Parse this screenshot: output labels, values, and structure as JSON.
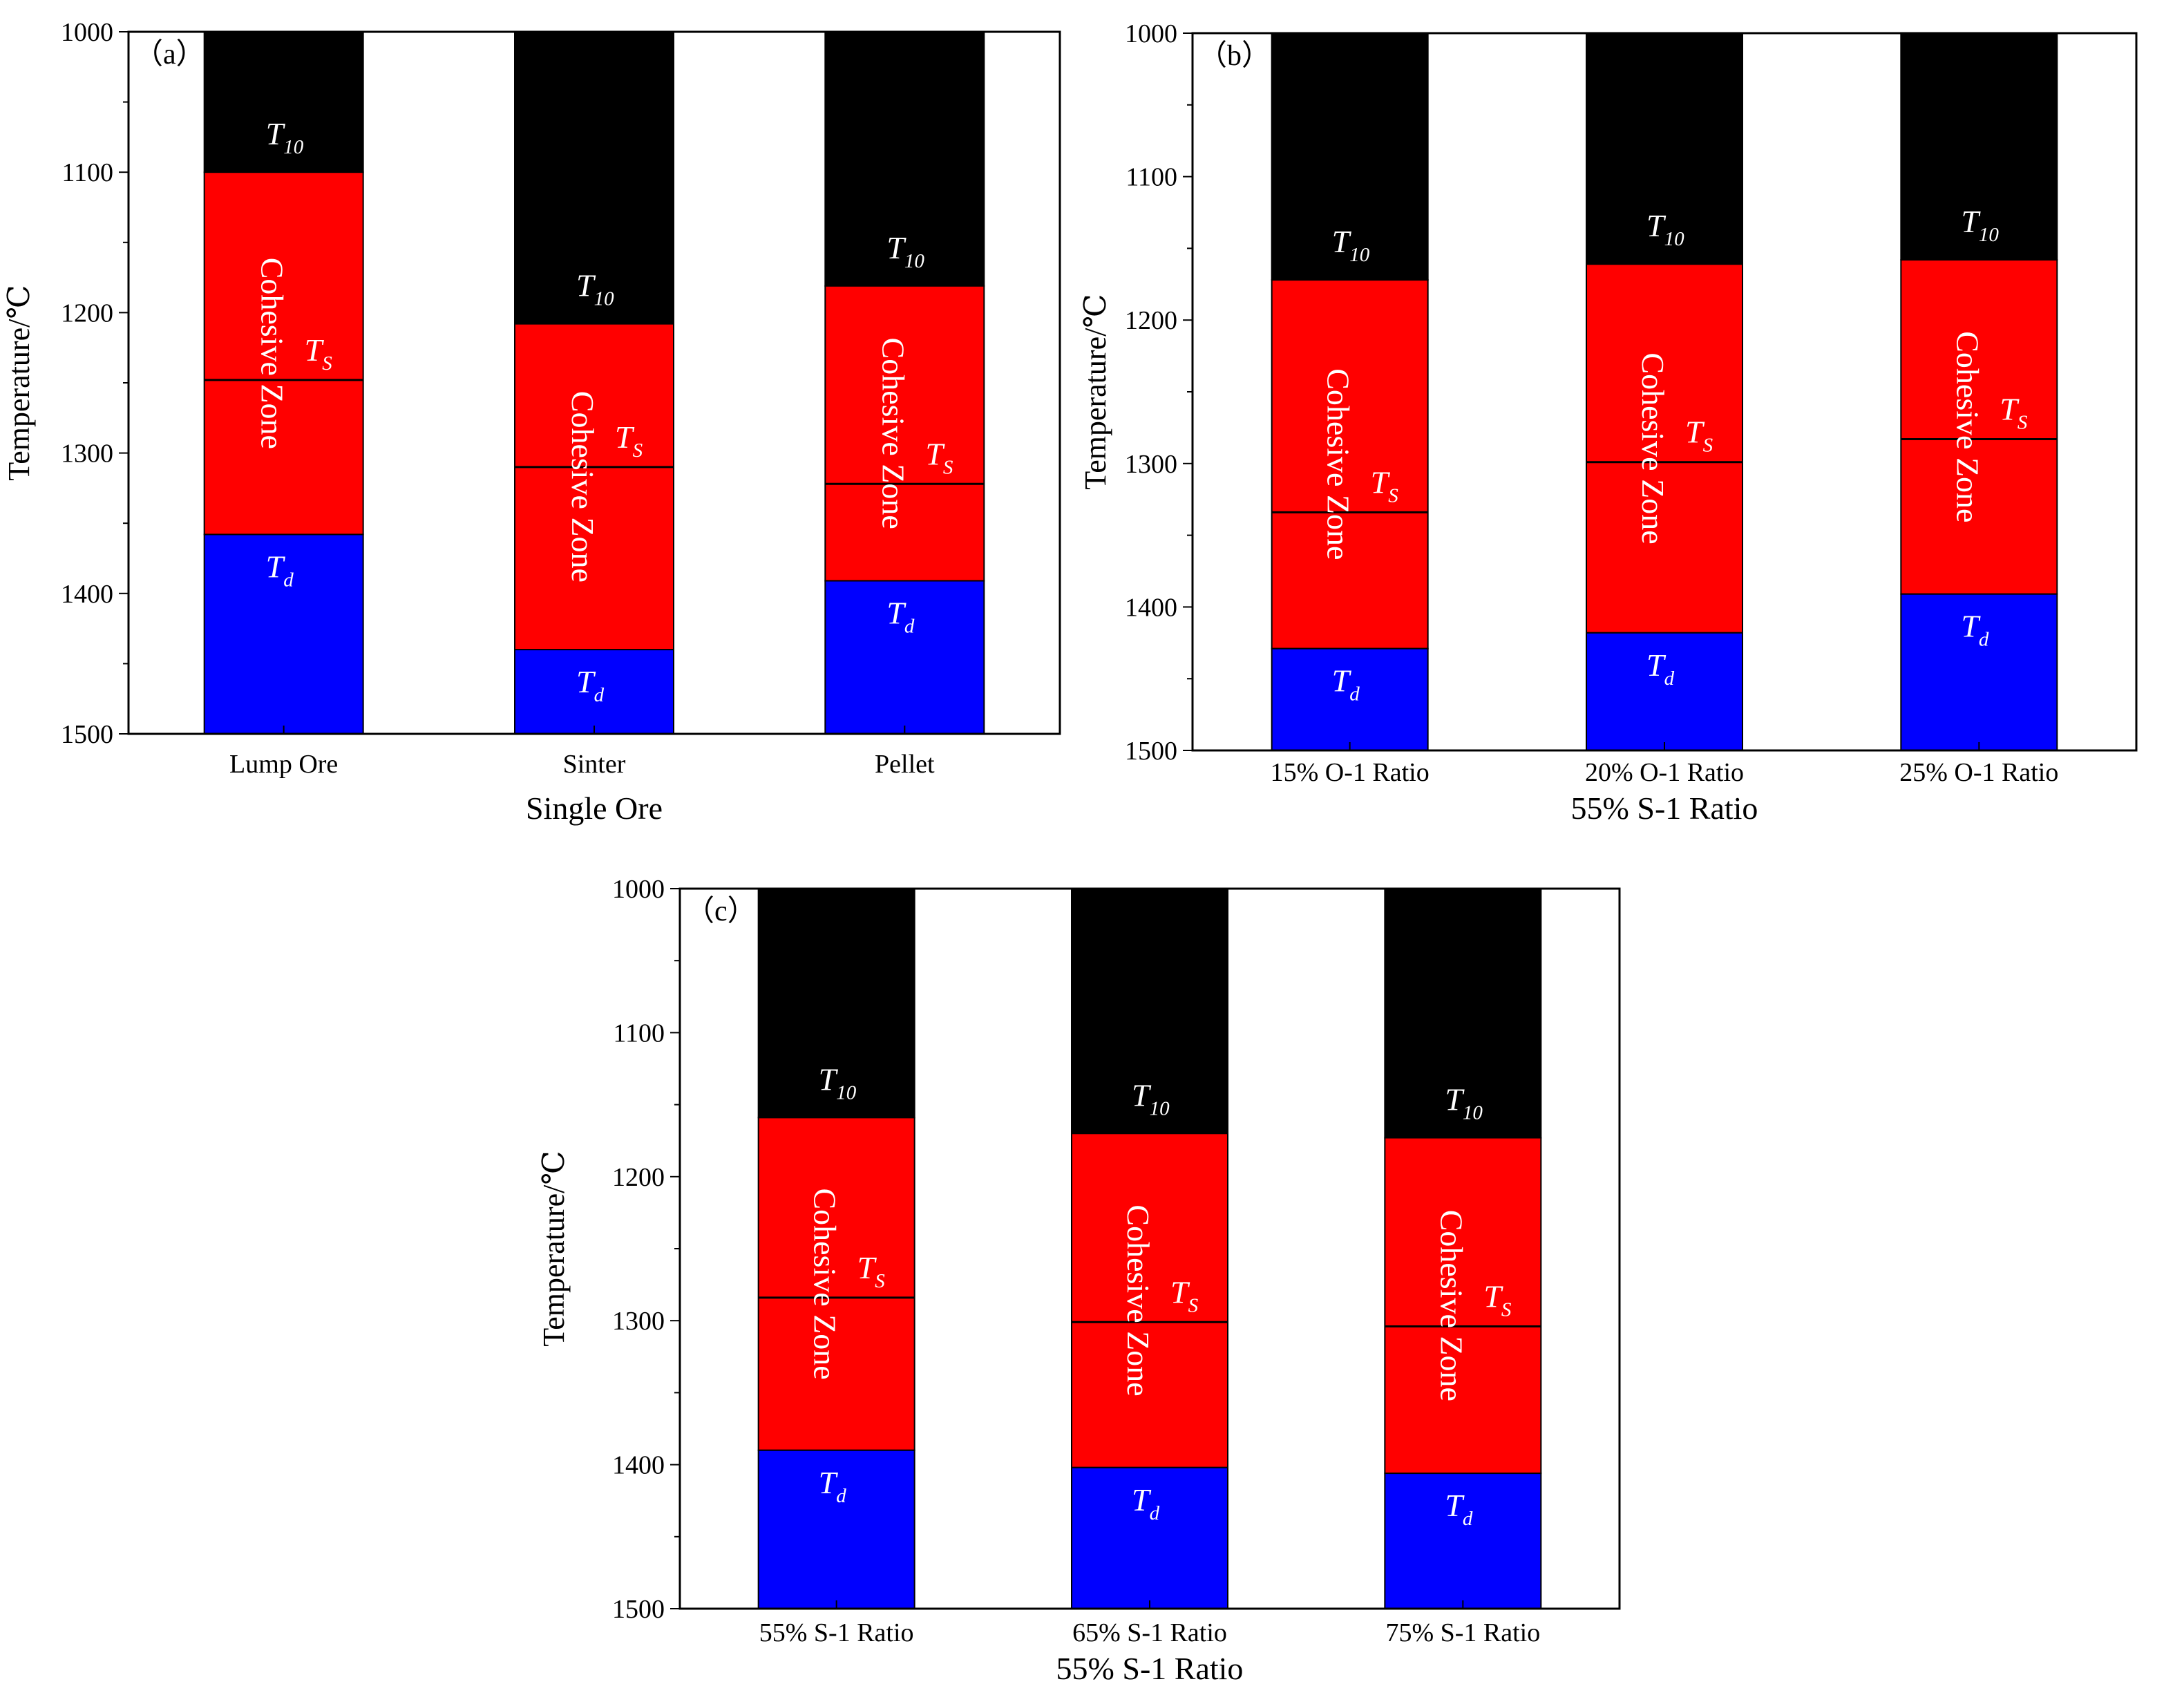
{
  "chart_data": [
    {
      "type": "bar",
      "panel_label": "（a）",
      "xlabel": "Single Ore",
      "ylabel": "Temperature/℃",
      "ylim": [
        1000,
        1500
      ],
      "y_inverted": true,
      "yticks": [
        1000,
        1100,
        1200,
        1300,
        1400,
        1500
      ],
      "categories": [
        "Lump Ore",
        "Sinter",
        "Pellet"
      ],
      "T10": [
        1100,
        1208,
        1181
      ],
      "TS": [
        1248,
        1310,
        1322
      ],
      "Td": [
        1358,
        1440,
        1391
      ],
      "zone_label": "Cohesive Zone",
      "colors": {
        "above_T10": "#000000",
        "cohesive_zone": "#ff0000",
        "below_Td": "#0000ff"
      }
    },
    {
      "type": "bar",
      "panel_label": "（b）",
      "xlabel": "55% S-1 Ratio",
      "ylabel": "Temperature/℃",
      "ylim": [
        1000,
        1500
      ],
      "y_inverted": true,
      "yticks": [
        1000,
        1100,
        1200,
        1300,
        1400,
        1500
      ],
      "categories": [
        "15% O-1 Ratio",
        "20% O-1 Ratio",
        "25% O-1 Ratio"
      ],
      "T10": [
        1172,
        1161,
        1158
      ],
      "TS": [
        1334,
        1299,
        1283
      ],
      "Td": [
        1429,
        1418,
        1391
      ],
      "zone_label": "Cohesive Zone",
      "colors": {
        "above_T10": "#000000",
        "cohesive_zone": "#ff0000",
        "below_Td": "#0000ff"
      }
    },
    {
      "type": "bar",
      "panel_label": "（c）",
      "xlabel": "55% S-1 Ratio",
      "ylabel": "Temperature/℃",
      "ylim": [
        1000,
        1500
      ],
      "y_inverted": true,
      "yticks": [
        1000,
        1100,
        1200,
        1300,
        1400,
        1500
      ],
      "categories": [
        "55% S-1 Ratio",
        "65% S-1 Ratio",
        "75% S-1 Ratio"
      ],
      "T10": [
        1159,
        1170,
        1173
      ],
      "TS": [
        1284,
        1301,
        1304
      ],
      "Td": [
        1390,
        1402,
        1406
      ],
      "zone_label": "Cohesive Zone",
      "colors": {
        "above_T10": "#000000",
        "cohesive_zone": "#ff0000",
        "below_Td": "#0000ff"
      }
    }
  ],
  "marker_labels": {
    "t10_base": "T",
    "t10_sub": "10",
    "ts_base": "T",
    "ts_sub": "S",
    "td_base": "T",
    "td_sub": "d"
  }
}
